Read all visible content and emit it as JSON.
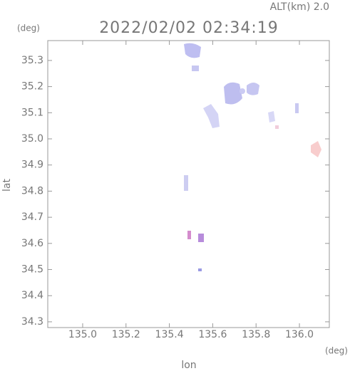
{
  "chart_data": {
    "type": "map",
    "title": "2022/02/02 02:34:19",
    "subtitle": "ALT(km) 2.0",
    "x_label": "lon",
    "y_label": "lat",
    "x_unit": "(deg)",
    "y_unit": "(deg)",
    "xlim": [
      134.839,
      136.138
    ],
    "ylim": [
      34.278,
      35.376
    ],
    "xticks": [
      {
        "value": 135.0,
        "label": "135.0"
      },
      135.2,
      135.4,
      135.6,
      135.8,
      {
        "value": 136.0,
        "label": "136.0"
      }
    ],
    "yticks": [
      34.3,
      34.4,
      34.5,
      34.6,
      34.7,
      34.8,
      34.9,
      {
        "value": 35.0,
        "label": "35.0"
      },
      35.1,
      35.2,
      35.3
    ]
  }
}
